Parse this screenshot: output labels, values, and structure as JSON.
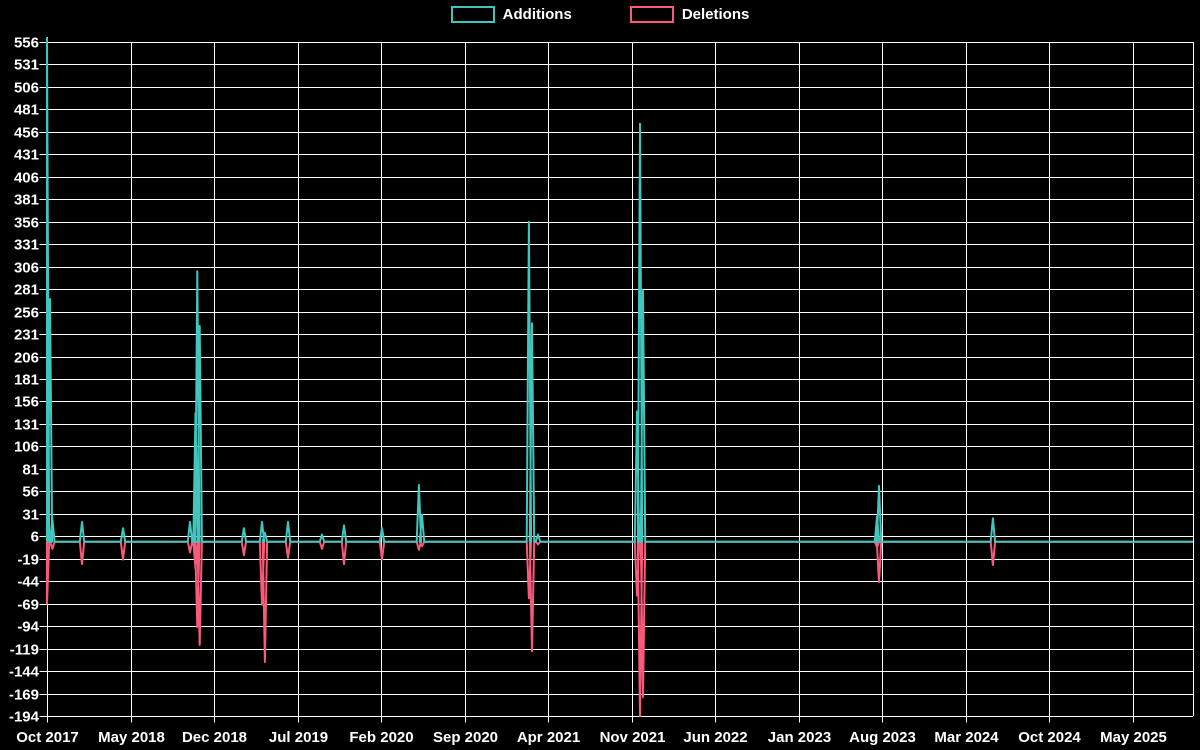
{
  "page": {
    "background": "#000000",
    "text_color": "#ffffff",
    "grid_color": "#ffffff"
  },
  "legend": {
    "items": [
      {
        "label": "Additions",
        "color": "#42c5bd"
      },
      {
        "label": "Deletions",
        "color": "#fa5a7a"
      }
    ]
  },
  "chart_data": {
    "type": "line",
    "title": "",
    "grid": true,
    "legend_position": "top",
    "background": "#000000",
    "y_axis": {
      "min": -194,
      "max": 556,
      "tick_step": 25,
      "tick_labels": [
        "556",
        "531",
        "506",
        "481",
        "456",
        "431",
        "406",
        "381",
        "356",
        "331",
        "306",
        "281",
        "256",
        "231",
        "206",
        "181",
        "156",
        "131",
        "106",
        "81",
        "56",
        "31",
        "6",
        "-19",
        "-44",
        "-69",
        "-94",
        "-119",
        "-144",
        "-169",
        "-194"
      ]
    },
    "x_axis": {
      "months_per_tick": 7,
      "tick_labels": [
        "Oct 2017",
        "May 2018",
        "Dec 2018",
        "Jul 2019",
        "Feb 2020",
        "Sep 2020",
        "Apr 2021",
        "Nov 2021",
        "Jun 2022",
        "Jan 2023",
        "Aug 2023",
        "Mar 2024",
        "Oct 2024",
        "May 2025"
      ]
    },
    "baseline_value": 0,
    "series": [
      {
        "name": "Additions",
        "color": "#42c5bd",
        "points": [
          {
            "date": "Oct 2017",
            "month": 0,
            "value": 560
          },
          {
            "date": "Oct 2017",
            "month": 0.25,
            "value": 270
          },
          {
            "date": "Nov 2017",
            "month": 0.45,
            "value": 25
          },
          {
            "date": "Jan 2018",
            "month": 2.93,
            "value": 22
          },
          {
            "date": "Apr 2018",
            "month": 6.37,
            "value": 15
          },
          {
            "date": "Oct 2018",
            "month": 11.99,
            "value": 22
          },
          {
            "date": "Nov 2018",
            "month": 12.45,
            "value": 143
          },
          {
            "date": "Nov 2018",
            "month": 12.6,
            "value": 301
          },
          {
            "date": "Dec 2018",
            "month": 12.8,
            "value": 240
          },
          {
            "date": "Feb 2019",
            "month": 16.51,
            "value": 15
          },
          {
            "date": "Apr 2019",
            "month": 18.02,
            "value": 22
          },
          {
            "date": "Apr 2019",
            "month": 18.27,
            "value": 10
          },
          {
            "date": "Jun 2019",
            "month": 20.2,
            "value": 22
          },
          {
            "date": "Sep 2019",
            "month": 23.05,
            "value": 8
          },
          {
            "date": "Nov 2019",
            "month": 24.9,
            "value": 18
          },
          {
            "date": "Feb 2020",
            "month": 28.08,
            "value": 15
          },
          {
            "date": "May 2020",
            "month": 31.18,
            "value": 63
          },
          {
            "date": "May 2020",
            "month": 31.44,
            "value": 30
          },
          {
            "date": "Feb 2021",
            "month": 40.4,
            "value": 356
          },
          {
            "date": "Mar 2021",
            "month": 40.66,
            "value": 243
          },
          {
            "date": "Mar 2021",
            "month": 41.16,
            "value": 8
          },
          {
            "date": "Nov 2021",
            "month": 49.46,
            "value": 145
          },
          {
            "date": "Nov 2021",
            "month": 49.71,
            "value": 465
          },
          {
            "date": "Dec 2021",
            "month": 49.96,
            "value": 280
          },
          {
            "date": "Jul 2023",
            "month": 69.58,
            "value": 28
          },
          {
            "date": "Aug 2023",
            "month": 69.75,
            "value": 62
          },
          {
            "date": "May 2024",
            "month": 79.3,
            "value": 26
          }
        ]
      },
      {
        "name": "Deletions",
        "color": "#fa5a7a",
        "points": [
          {
            "date": "Oct 2017",
            "month": 0,
            "value": -69
          },
          {
            "date": "Nov 2017",
            "month": 0.45,
            "value": -8
          },
          {
            "date": "Jan 2018",
            "month": 2.93,
            "value": -25
          },
          {
            "date": "Apr 2018",
            "month": 6.37,
            "value": -20
          },
          {
            "date": "Oct 2018",
            "month": 11.99,
            "value": -12
          },
          {
            "date": "Nov 2018",
            "month": 12.45,
            "value": -30
          },
          {
            "date": "Nov 2018",
            "month": 12.6,
            "value": -95
          },
          {
            "date": "Dec 2018",
            "month": 12.8,
            "value": -115
          },
          {
            "date": "Feb 2019",
            "month": 16.51,
            "value": -15
          },
          {
            "date": "Apr 2019",
            "month": 18.02,
            "value": -70
          },
          {
            "date": "Apr 2019",
            "month": 18.27,
            "value": -134
          },
          {
            "date": "Jun 2019",
            "month": 20.2,
            "value": -18
          },
          {
            "date": "Sep 2019",
            "month": 23.05,
            "value": -8
          },
          {
            "date": "Nov 2019",
            "month": 24.9,
            "value": -25
          },
          {
            "date": "Feb 2020",
            "month": 28.08,
            "value": -20
          },
          {
            "date": "May 2020",
            "month": 31.18,
            "value": -9
          },
          {
            "date": "May 2020",
            "month": 31.44,
            "value": -5
          },
          {
            "date": "Feb 2021",
            "month": 40.4,
            "value": -63
          },
          {
            "date": "Mar 2021",
            "month": 40.66,
            "value": -122
          },
          {
            "date": "Mar 2021",
            "month": 41.16,
            "value": -3
          },
          {
            "date": "Nov 2021",
            "month": 49.46,
            "value": -60
          },
          {
            "date": "Nov 2021",
            "month": 49.71,
            "value": -194
          },
          {
            "date": "Dec 2021",
            "month": 49.96,
            "value": -173
          },
          {
            "date": "Jul 2023",
            "month": 69.58,
            "value": -6
          },
          {
            "date": "Aug 2023",
            "month": 69.75,
            "value": -45
          },
          {
            "date": "May 2024",
            "month": 79.3,
            "value": -26
          }
        ]
      }
    ]
  }
}
